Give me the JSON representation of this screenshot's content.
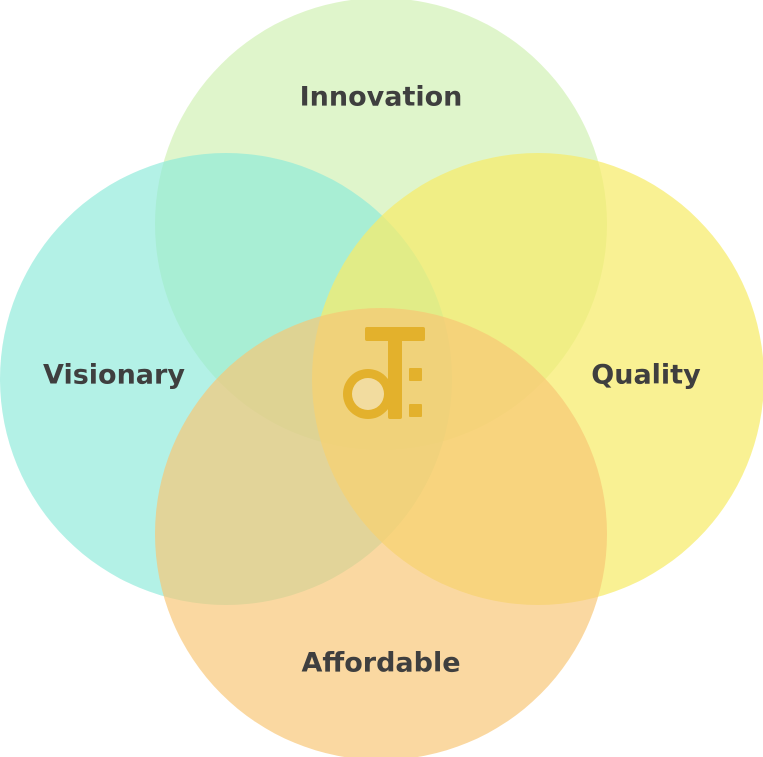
{
  "diagram": {
    "type": "venn",
    "sets": [
      {
        "key": "top",
        "label": "Innovation",
        "color": "#D3F1B7"
      },
      {
        "key": "left",
        "label": "Visionary",
        "color": "#8CE9D9"
      },
      {
        "key": "right",
        "label": "Quality",
        "color": "#F7EB6A"
      },
      {
        "key": "bottom",
        "label": "Affordable",
        "color": "#F7C574"
      }
    ],
    "label_color": "#3F3F3F",
    "center_logo": {
      "icon": "dt-music-note-logo",
      "color": "#E3B12C"
    }
  }
}
